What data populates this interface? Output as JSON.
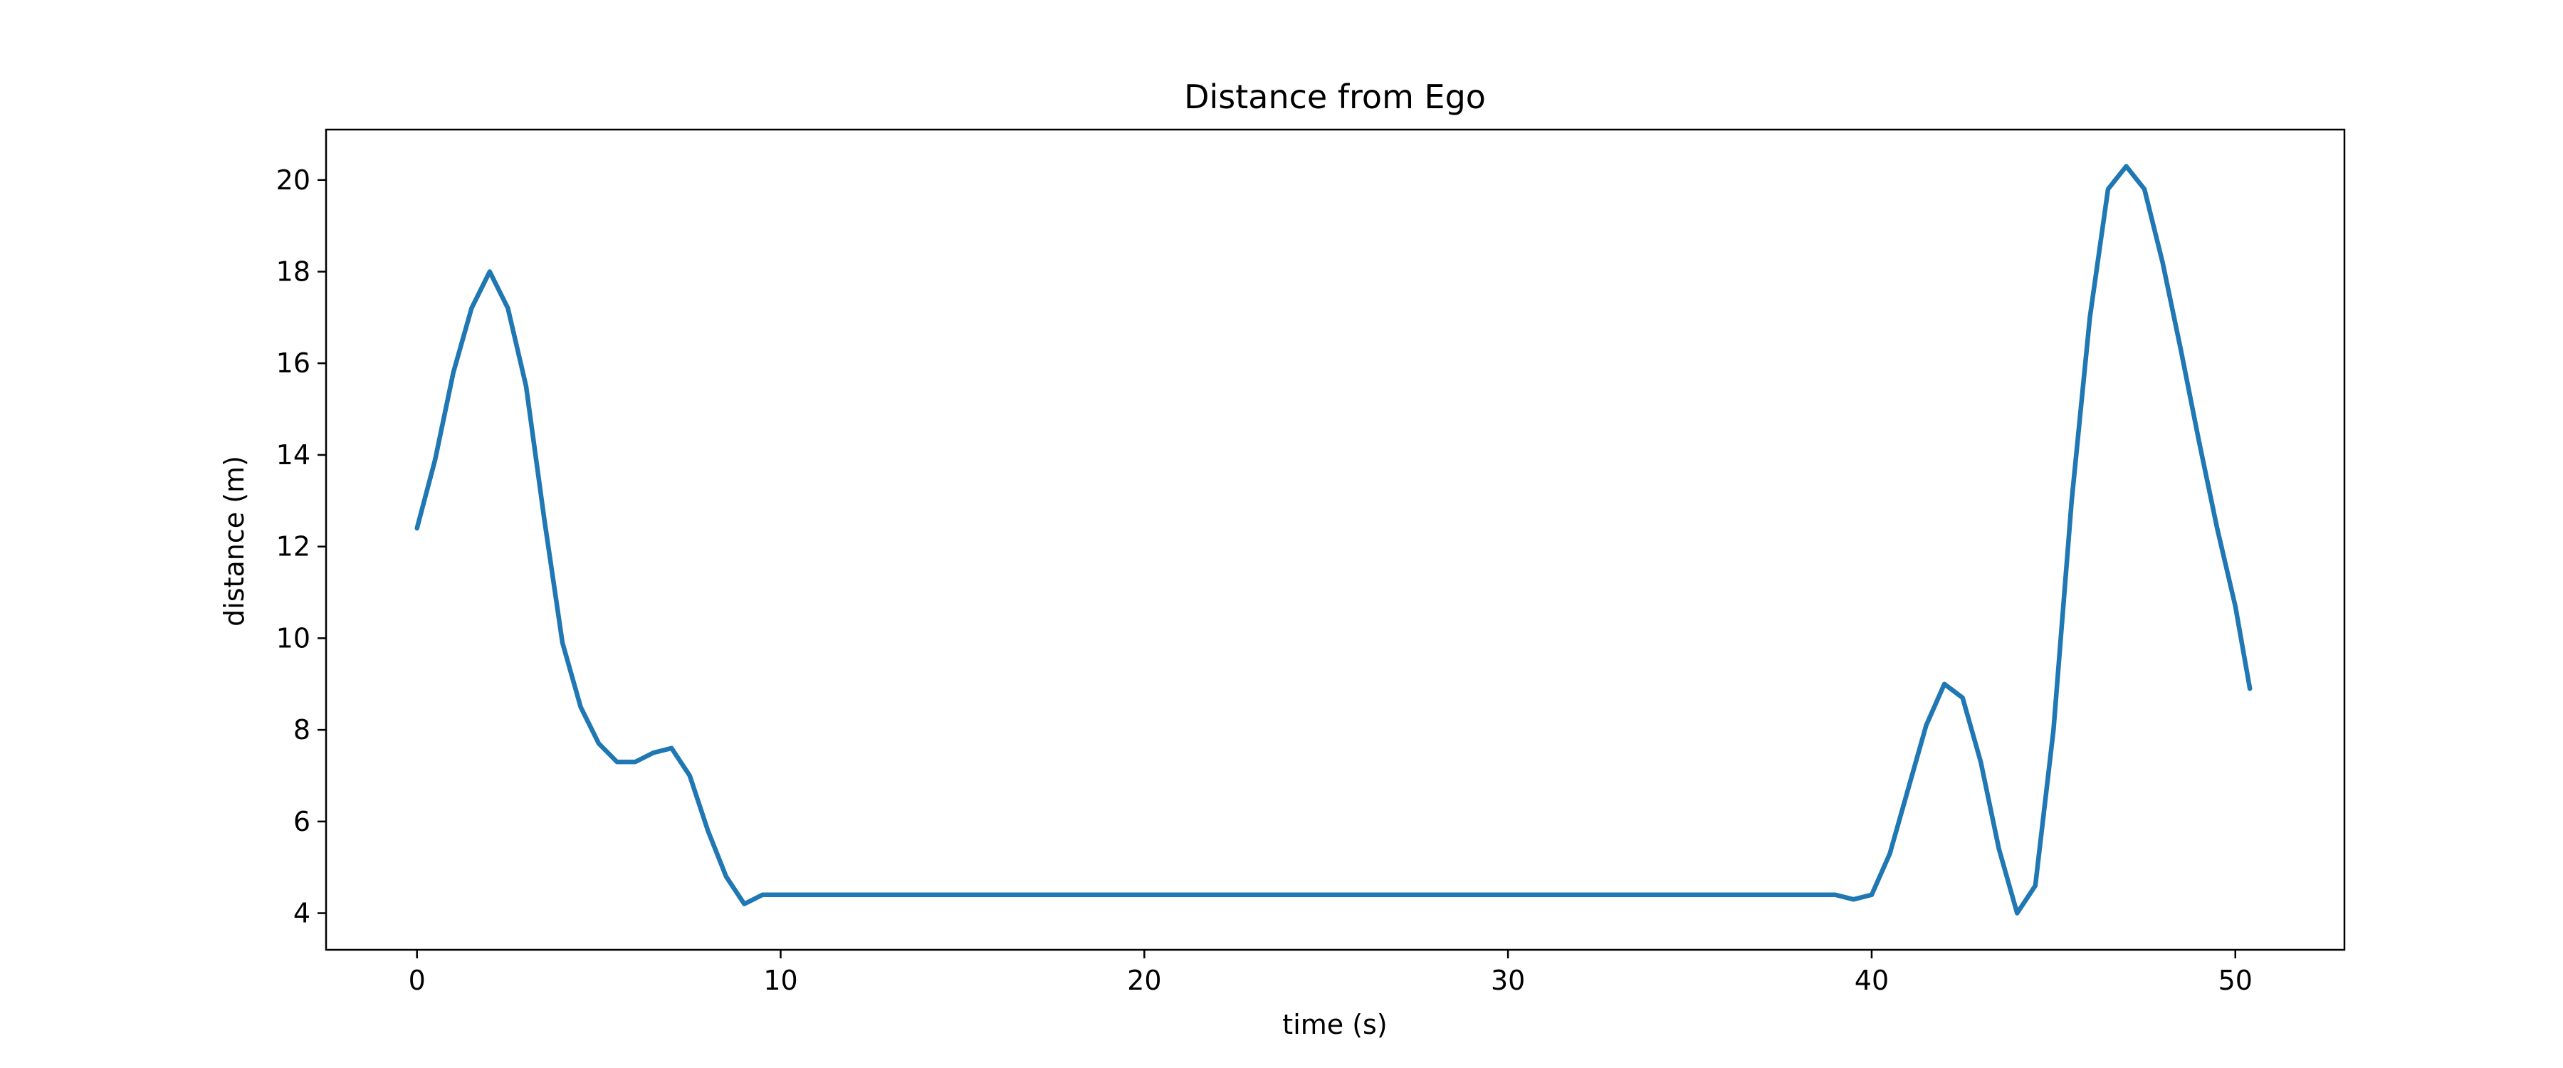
{
  "chart_data": {
    "type": "line",
    "title": "Distance from Ego",
    "xlabel": "time (s)",
    "ylabel": "distance (m)",
    "xlim": [
      -2.5,
      53
    ],
    "ylim": [
      3.2,
      21.1
    ],
    "xticks": [
      0,
      10,
      20,
      30,
      40,
      50
    ],
    "yticks": [
      4,
      6,
      8,
      10,
      12,
      14,
      16,
      18,
      20
    ],
    "grid": false,
    "series_color": "#1f77b4",
    "series": [
      {
        "points": [
          [
            0,
            12.4
          ],
          [
            0.5,
            13.9
          ],
          [
            1.0,
            15.8
          ],
          [
            1.5,
            17.2
          ],
          [
            2.0,
            18.0
          ],
          [
            2.5,
            17.2
          ],
          [
            3.0,
            15.5
          ],
          [
            3.5,
            12.6
          ],
          [
            4.0,
            9.9
          ],
          [
            4.5,
            8.5
          ],
          [
            5.0,
            7.7
          ],
          [
            5.5,
            7.3
          ],
          [
            6.0,
            7.3
          ],
          [
            6.5,
            7.5
          ],
          [
            7.0,
            7.6
          ],
          [
            7.5,
            7.0
          ],
          [
            8.0,
            5.8
          ],
          [
            8.5,
            4.8
          ],
          [
            9.0,
            4.2
          ],
          [
            9.5,
            4.4
          ],
          [
            10,
            4.4
          ],
          [
            15,
            4.4
          ],
          [
            20,
            4.4
          ],
          [
            25,
            4.4
          ],
          [
            30,
            4.4
          ],
          [
            35,
            4.4
          ],
          [
            39.0,
            4.4
          ],
          [
            39.5,
            4.3
          ],
          [
            40.0,
            4.4
          ],
          [
            40.5,
            5.3
          ],
          [
            41.0,
            6.7
          ],
          [
            41.5,
            8.1
          ],
          [
            42.0,
            9.0
          ],
          [
            42.5,
            8.7
          ],
          [
            43.0,
            7.3
          ],
          [
            43.5,
            5.4
          ],
          [
            44.0,
            4.0
          ],
          [
            44.5,
            4.6
          ],
          [
            45.0,
            8.0
          ],
          [
            45.5,
            13.0
          ],
          [
            46.0,
            17.0
          ],
          [
            46.5,
            19.8
          ],
          [
            47.0,
            20.3
          ],
          [
            47.5,
            19.8
          ],
          [
            48.0,
            18.2
          ],
          [
            48.5,
            16.3
          ],
          [
            49.0,
            14.3
          ],
          [
            49.5,
            12.4
          ],
          [
            50.0,
            10.7
          ],
          [
            50.4,
            8.9
          ]
        ]
      }
    ]
  }
}
